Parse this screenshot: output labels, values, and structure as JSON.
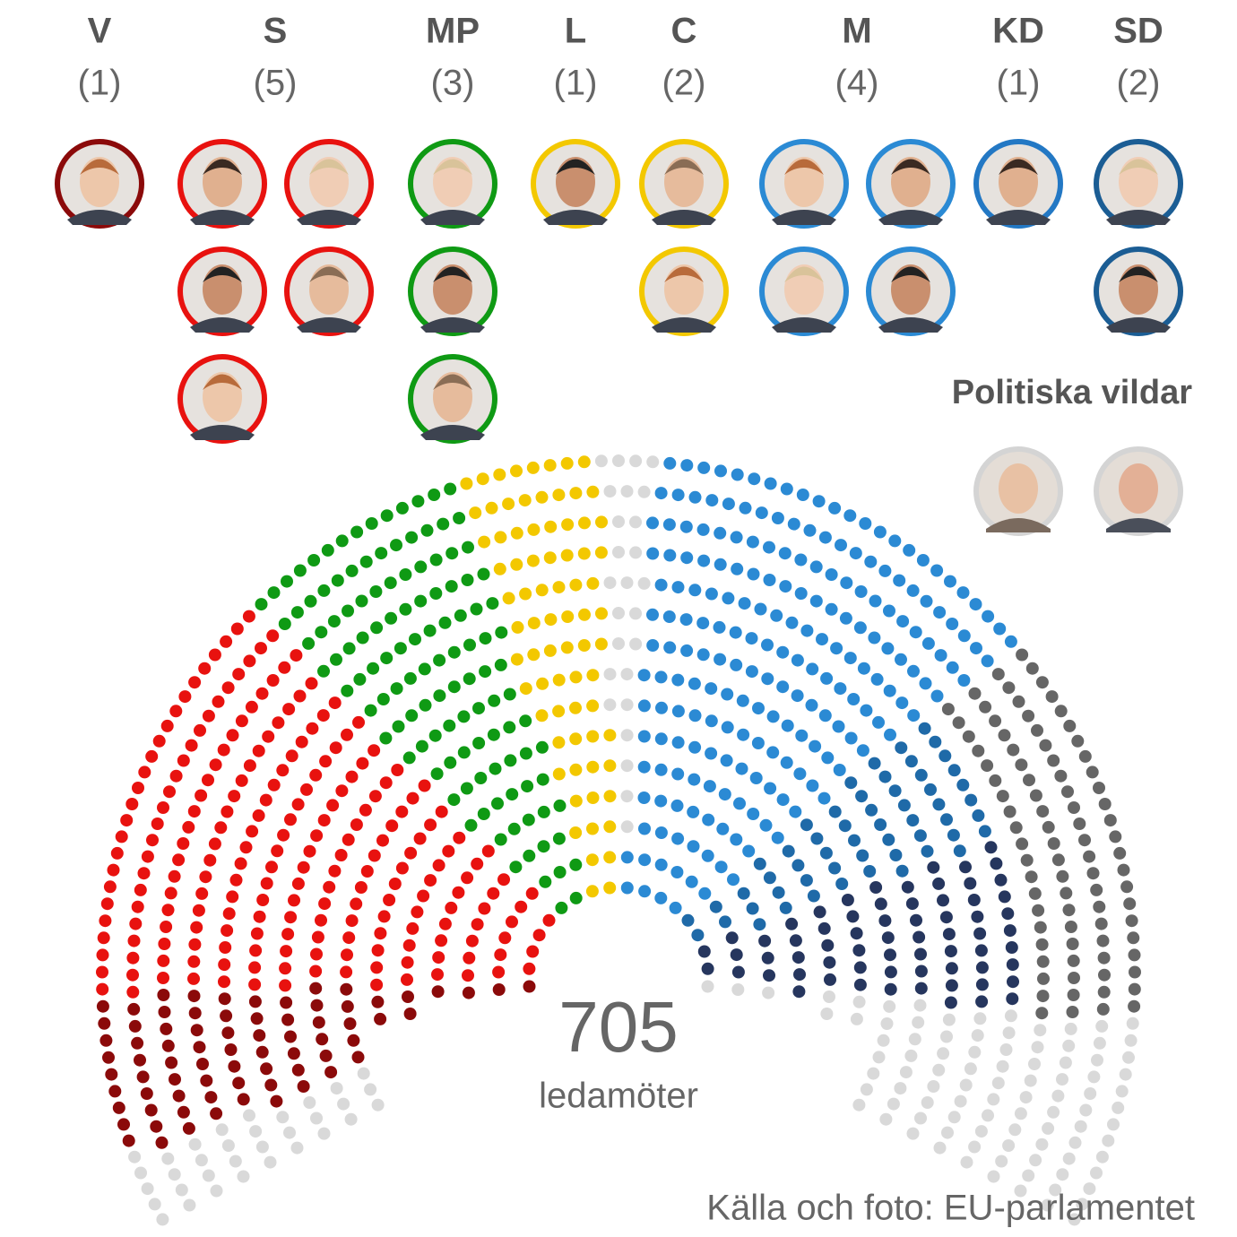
{
  "parties": [
    {
      "name": "V",
      "count": {
        "value": 1,
        "label": "(1)"
      },
      "color": "#8b0a0a"
    },
    {
      "name": "S",
      "count": {
        "value": 5,
        "label": "(5)"
      },
      "color": "#e8120f"
    },
    {
      "name": "MP",
      "count": {
        "value": 3,
        "label": "(3)"
      },
      "color": "#0f9a14"
    },
    {
      "name": "L",
      "count": {
        "value": 1,
        "label": "(1)"
      },
      "color": "#f3c800"
    },
    {
      "name": "C",
      "count": {
        "value": 2,
        "label": "(2)"
      },
      "color": "#f3c800"
    },
    {
      "name": "M",
      "count": {
        "value": 4,
        "label": "(4)"
      },
      "color": "#2b8ad4"
    },
    {
      "name": "KD",
      "count": {
        "value": 1,
        "label": "(1)"
      },
      "color": "#2378c4"
    },
    {
      "name": "SD",
      "count": {
        "value": 2,
        "label": "(2)"
      },
      "color": "#1b5d94"
    }
  ],
  "independents": {
    "title": "Politiska vildar"
  },
  "total": {
    "value": 705,
    "label": "ledamöter"
  },
  "source": "Källa och foto: EU-parlamentet"
}
